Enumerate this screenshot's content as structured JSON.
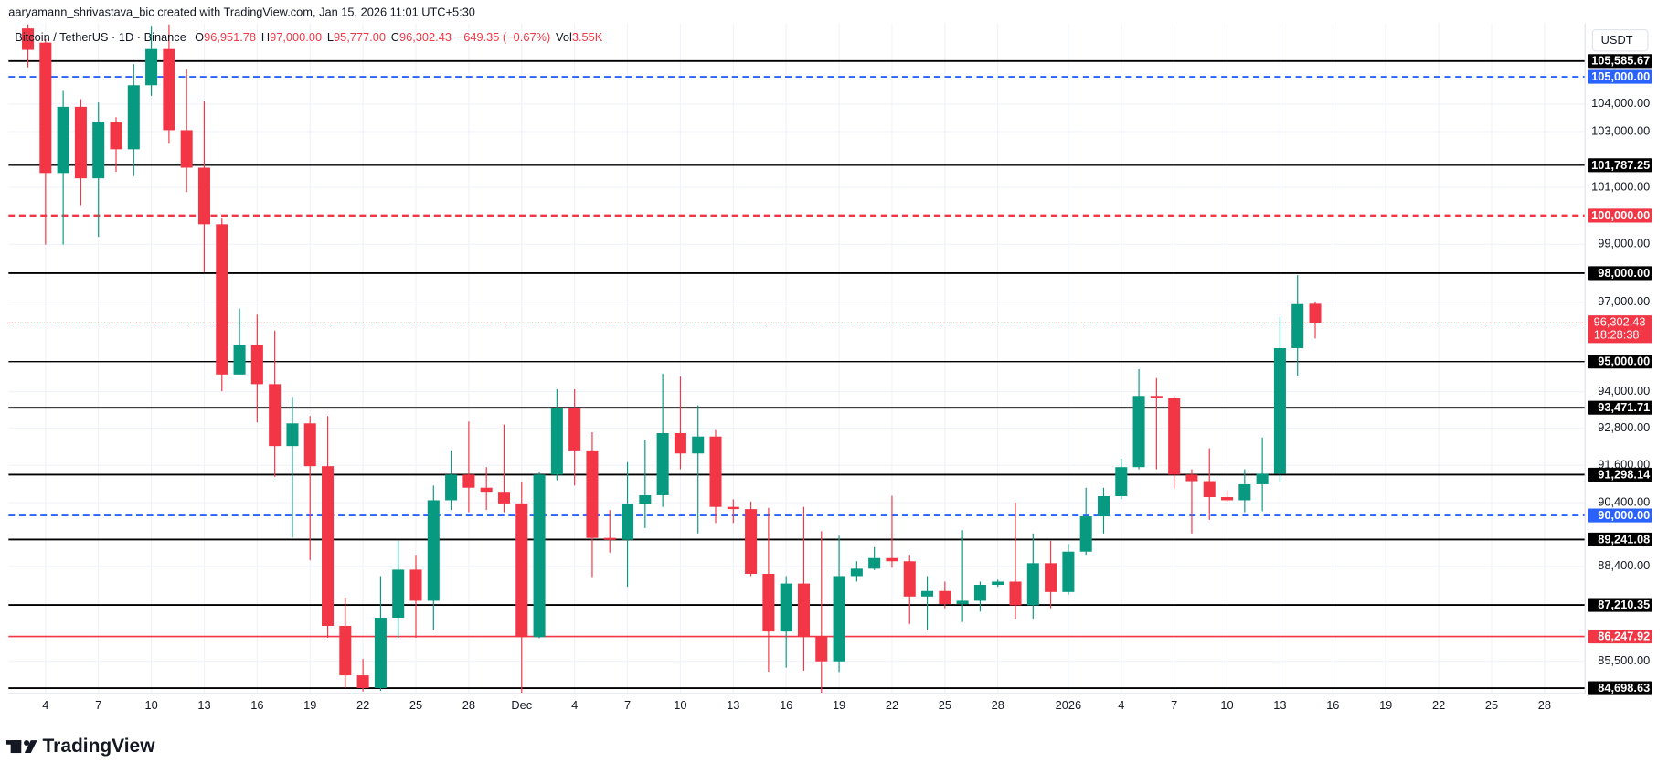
{
  "header": {
    "attribution": "aaryamann_shrivastava_bic created with TradingView.com, Jan 15, 2026 11:01 UTC+5:30",
    "logo": "TradingView"
  },
  "chart_data": {
    "type": "candlestick",
    "title": "Bitcoin / TetherUS · 1D · Binance",
    "legend_fields": [
      {
        "key": "O",
        "text": "96,951.78"
      },
      {
        "key": "H",
        "text": "97,000.00"
      },
      {
        "key": "L",
        "text": "95,777.00"
      },
      {
        "key": "C",
        "text": "96,302.43"
      }
    ],
    "change": "−649.35 (−0.67%)",
    "volume": {
      "key": "Vol",
      "text": "3.55K"
    },
    "currency": "USDT",
    "up_color": "#089981",
    "down_color": "#f23645",
    "open": [
      106800,
      106270,
      101510,
      103900,
      101320,
      103360,
      102360,
      104690,
      106030,
      103050,
      101700,
      99700,
      94570,
      95560,
      94250,
      92220,
      92960,
      91570,
      86570,
      85080,
      84700,
      86820,
      88300,
      87340,
      90480,
      91300,
      90880,
      90750,
      90380,
      86230,
      91300,
      93450,
      92080,
      89290,
      89230,
      90370,
      90640,
      92640,
      91980,
      92530,
      90270,
      90200,
      88170,
      86400,
      87870,
      86240,
      85500,
      88100,
      88330,
      88660,
      88560,
      87470,
      87640,
      87240,
      87340,
      87830,
      87930,
      87200,
      88500,
      87610,
      88860,
      89970,
      90610,
      91540,
      93860,
      93790,
      91300,
      91090,
      90580,
      90480,
      90990,
      91330,
      95450,
      96951.78
    ],
    "high": [
      106950,
      106400,
      104480,
      104180,
      104060,
      103520,
      105470,
      106900,
      106950,
      105280,
      104100,
      99900,
      96790,
      96580,
      96040,
      93830,
      93200,
      93200,
      87440,
      85570,
      88100,
      89200,
      88760,
      90950,
      92080,
      93020,
      91540,
      92920,
      91050,
      91400,
      94080,
      94080,
      92670,
      90170,
      91700,
      92430,
      94600,
      94500,
      93550,
      92740,
      90510,
      90440,
      90240,
      88100,
      90270,
      89500,
      89360,
      88560,
      89000,
      90620,
      88760,
      88100,
      87930,
      89530,
      87930,
      87990,
      90410,
      89430,
      89200,
      89100,
      90880,
      90880,
      91810,
      94750,
      94450,
      93860,
      91470,
      92150,
      90780,
      91470,
      92500,
      96500,
      97930,
      97000
    ],
    "low": [
      105350,
      98990,
      98990,
      100370,
      99260,
      101550,
      101400,
      104300,
      102560,
      100830,
      98030,
      94010,
      94570,
      92990,
      91230,
      89300,
      88590,
      86210,
      84700,
      84600,
      84620,
      86210,
      86210,
      86460,
      90170,
      90100,
      90170,
      90100,
      84560,
      86200,
      91120,
      90950,
      88070,
      88830,
      87770,
      89600,
      90270,
      91470,
      89430,
      89760,
      89760,
      88100,
      85190,
      85310,
      85220,
      84560,
      85180,
      87930,
      88290,
      88360,
      86630,
      86460,
      87110,
      86690,
      87010,
      87770,
      86790,
      86790,
      87110,
      87530,
      88760,
      89430,
      90510,
      91470,
      91470,
      90850,
      89430,
      89860,
      90440,
      90100,
      90130,
      91050,
      94530,
      95777
    ],
    "close": [
      106000,
      101510,
      103900,
      101320,
      103360,
      102360,
      104690,
      106030,
      103050,
      101700,
      99700,
      94570,
      95560,
      94250,
      92220,
      92960,
      91570,
      86570,
      85080,
      84700,
      86820,
      88300,
      87340,
      90480,
      91300,
      90880,
      90750,
      90380,
      86230,
      91300,
      93450,
      92080,
      89290,
      89230,
      90370,
      90640,
      92640,
      91980,
      92530,
      90270,
      90200,
      88170,
      86400,
      87870,
      86240,
      85500,
      88100,
      88330,
      88660,
      88560,
      87470,
      87640,
      87240,
      87340,
      87830,
      87930,
      87200,
      88500,
      87610,
      88860,
      89970,
      90610,
      91540,
      93860,
      93790,
      91300,
      91090,
      90580,
      90480,
      90990,
      91330,
      95450,
      96940,
      96302.43
    ],
    "xlim": [
      -1.1,
      88.3
    ],
    "xticks": [
      {
        "value": 1,
        "label": "4"
      },
      {
        "value": 4,
        "label": "7"
      },
      {
        "value": 7,
        "label": "10"
      },
      {
        "value": 10,
        "label": "13"
      },
      {
        "value": 13,
        "label": "16"
      },
      {
        "value": 16,
        "label": "19"
      },
      {
        "value": 19,
        "label": "22"
      },
      {
        "value": 22,
        "label": "25"
      },
      {
        "value": 25,
        "label": "28"
      },
      {
        "value": 28,
        "label": "Dec"
      },
      {
        "value": 31,
        "label": "4"
      },
      {
        "value": 34,
        "label": "7"
      },
      {
        "value": 37,
        "label": "10"
      },
      {
        "value": 40,
        "label": "13"
      },
      {
        "value": 43,
        "label": "16"
      },
      {
        "value": 46,
        "label": "19"
      },
      {
        "value": 49,
        "label": "22"
      },
      {
        "value": 52,
        "label": "25"
      },
      {
        "value": 55,
        "label": "28"
      },
      {
        "value": 59,
        "label": "2026"
      },
      {
        "value": 62,
        "label": "4"
      },
      {
        "value": 65,
        "label": "7"
      },
      {
        "value": 68,
        "label": "10"
      },
      {
        "value": 71,
        "label": "13"
      },
      {
        "value": 74,
        "label": "16"
      },
      {
        "value": 77,
        "label": "19"
      },
      {
        "value": 80,
        "label": "22"
      },
      {
        "value": 83,
        "label": "25"
      },
      {
        "value": 86,
        "label": "28"
      }
    ],
    "ylim": [
      84540,
      106990
    ],
    "log": true,
    "grid": true,
    "yticks": [
      {
        "value": 104000,
        "label": "104,000.00"
      },
      {
        "value": 103000,
        "label": "103,000.00"
      },
      {
        "value": 101000,
        "label": "101,000.00"
      },
      {
        "value": 99000,
        "label": "99,000.00"
      },
      {
        "value": 97000,
        "label": "97,000.00"
      },
      {
        "value": 94000,
        "label": "94,000.00"
      },
      {
        "value": 92800,
        "label": "92,800.00"
      },
      {
        "value": 91600,
        "label": "91,600.00"
      },
      {
        "value": 90400,
        "label": "90,400.00"
      },
      {
        "value": 88400,
        "label": "88,400.00"
      },
      {
        "value": 85500,
        "label": "85,500.00"
      }
    ],
    "levels": [
      {
        "value": 105585.67,
        "label": "105,585.67",
        "color": "#000000",
        "dash": "solid",
        "width": 1.6
      },
      {
        "value": 105000,
        "label": "105,000.00",
        "color": "#2962ff",
        "dash": "dashed",
        "width": 1.6
      },
      {
        "value": 101787.25,
        "label": "101,787.25",
        "color": "#000000",
        "dash": "solid",
        "width": 1.2
      },
      {
        "value": 100000,
        "label": "100,000.00",
        "color": "#f23645",
        "dash": "dashed",
        "width": 2.4
      },
      {
        "value": 98000,
        "label": "98,000.00",
        "color": "#000000",
        "dash": "solid",
        "width": 1.6
      },
      {
        "value": 95000,
        "label": "95,000.00",
        "color": "#000000",
        "dash": "solid",
        "width": 1.2
      },
      {
        "value": 93471.71,
        "label": "93,471.71",
        "color": "#000000",
        "dash": "solid",
        "width": 1.6
      },
      {
        "value": 91298.14,
        "label": "91,298.14",
        "color": "#000000",
        "dash": "solid",
        "width": 1.6
      },
      {
        "value": 90000,
        "label": "90,000.00",
        "color": "#2962ff",
        "dash": "dashed",
        "width": 1.6
      },
      {
        "value": 89241.08,
        "label": "89,241.08",
        "color": "#000000",
        "dash": "solid",
        "width": 1.6
      },
      {
        "value": 87210.35,
        "label": "87,210.35",
        "color": "#000000",
        "dash": "solid",
        "width": 1.6
      },
      {
        "value": 86247.92,
        "label": "86,247.92",
        "color": "#f23645",
        "dash": "solid",
        "width": 1.4
      },
      {
        "value": 84698.63,
        "label": "84,698.63",
        "color": "#000000",
        "dash": "solid",
        "width": 1.6
      }
    ],
    "last_price": {
      "value": 96302.43,
      "label": "96,302.43",
      "countdown": "18:28:38",
      "color": "#f23645"
    }
  }
}
